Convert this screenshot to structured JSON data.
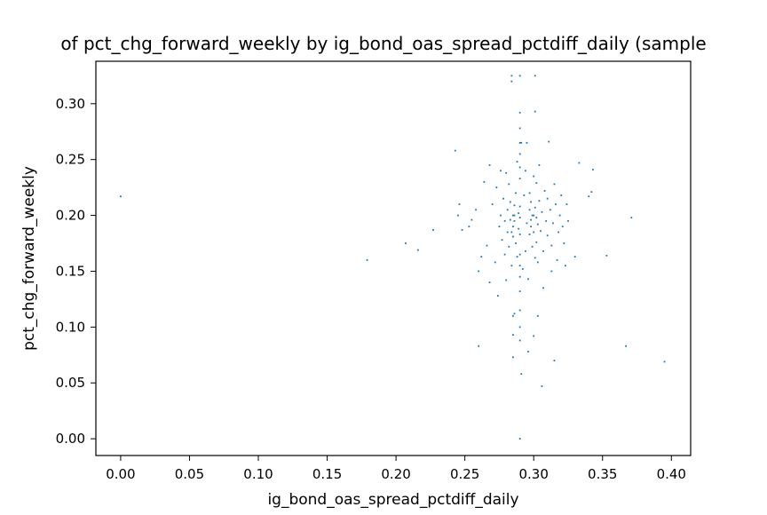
{
  "chart_data": {
    "type": "scatter",
    "title": "of pct_chg_forward_weekly by ig_bond_oas_spread_pctdiff_daily (sample",
    "xlabel": "ig_bond_oas_spread_pctdiff_daily",
    "ylabel": "pct_chg_forward_weekly",
    "xlim": [
      -0.018,
      0.414
    ],
    "ylim": [
      -0.015,
      0.338
    ],
    "xticks": [
      0.0,
      0.05,
      0.1,
      0.15,
      0.2,
      0.25,
      0.3,
      0.35,
      0.4
    ],
    "xtick_labels": [
      "0.00",
      "0.05",
      "0.10",
      "0.15",
      "0.20",
      "0.25",
      "0.30",
      "0.35",
      "0.40"
    ],
    "yticks": [
      0.0,
      0.05,
      0.1,
      0.15,
      0.2,
      0.25,
      0.3
    ],
    "ytick_labels": [
      "0.00",
      "0.05",
      "0.10",
      "0.15",
      "0.20",
      "0.25",
      "0.30"
    ],
    "grid": false,
    "series_color": "#1f77b4",
    "points": [
      [
        0.0,
        0.217
      ],
      [
        0.179,
        0.16
      ],
      [
        0.207,
        0.175
      ],
      [
        0.216,
        0.169
      ],
      [
        0.227,
        0.187
      ],
      [
        0.243,
        0.258
      ],
      [
        0.246,
        0.21
      ],
      [
        0.245,
        0.2
      ],
      [
        0.248,
        0.187
      ],
      [
        0.253,
        0.19
      ],
      [
        0.255,
        0.196
      ],
      [
        0.258,
        0.205
      ],
      [
        0.26,
        0.083
      ],
      [
        0.26,
        0.15
      ],
      [
        0.262,
        0.163
      ],
      [
        0.264,
        0.23
      ],
      [
        0.266,
        0.173
      ],
      [
        0.268,
        0.245
      ],
      [
        0.268,
        0.14
      ],
      [
        0.27,
        0.21
      ],
      [
        0.272,
        0.158
      ],
      [
        0.273,
        0.225
      ],
      [
        0.274,
        0.128
      ],
      [
        0.275,
        0.19
      ],
      [
        0.276,
        0.24
      ],
      [
        0.276,
        0.2
      ],
      [
        0.277,
        0.178
      ],
      [
        0.278,
        0.215
      ],
      [
        0.279,
        0.165
      ],
      [
        0.279,
        0.195
      ],
      [
        0.28,
        0.238
      ],
      [
        0.28,
        0.142
      ],
      [
        0.281,
        0.205
      ],
      [
        0.281,
        0.185
      ],
      [
        0.282,
        0.172
      ],
      [
        0.282,
        0.228
      ],
      [
        0.283,
        0.196
      ],
      [
        0.283,
        0.212
      ],
      [
        0.284,
        0.155
      ],
      [
        0.284,
        0.325
      ],
      [
        0.284,
        0.32
      ],
      [
        0.284,
        0.185
      ],
      [
        0.285,
        0.073
      ],
      [
        0.285,
        0.093
      ],
      [
        0.285,
        0.11
      ],
      [
        0.285,
        0.2
      ],
      [
        0.285,
        0.19
      ],
      [
        0.285,
        0.181
      ],
      [
        0.286,
        0.112
      ],
      [
        0.286,
        0.209
      ],
      [
        0.286,
        0.195
      ],
      [
        0.286,
        0.2
      ],
      [
        0.287,
        0.175
      ],
      [
        0.287,
        0.22
      ],
      [
        0.288,
        0.163
      ],
      [
        0.288,
        0.248
      ],
      [
        0.289,
        0.202
      ],
      [
        0.289,
        0.188
      ],
      [
        0.29,
        0.132
      ],
      [
        0.29,
        0.0
      ],
      [
        0.29,
        0.325
      ],
      [
        0.29,
        0.292
      ],
      [
        0.29,
        0.278
      ],
      [
        0.29,
        0.265
      ],
      [
        0.29,
        0.255
      ],
      [
        0.29,
        0.243
      ],
      [
        0.29,
        0.233
      ],
      [
        0.29,
        0.208
      ],
      [
        0.29,
        0.198
      ],
      [
        0.29,
        0.183
      ],
      [
        0.29,
        0.165
      ],
      [
        0.29,
        0.155
      ],
      [
        0.29,
        0.145
      ],
      [
        0.29,
        0.115
      ],
      [
        0.29,
        0.1
      ],
      [
        0.29,
        0.088
      ],
      [
        0.291,
        0.058
      ],
      [
        0.291,
        0.265
      ],
      [
        0.292,
        0.152
      ],
      [
        0.293,
        0.218
      ],
      [
        0.294,
        0.168
      ],
      [
        0.294,
        0.24
      ],
      [
        0.295,
        0.193
      ],
      [
        0.295,
        0.265
      ],
      [
        0.296,
        0.078
      ],
      [
        0.296,
        0.143
      ],
      [
        0.297,
        0.205
      ],
      [
        0.297,
        0.22
      ],
      [
        0.297,
        0.183
      ],
      [
        0.298,
        0.212
      ],
      [
        0.298,
        0.196
      ],
      [
        0.298,
        0.19
      ],
      [
        0.299,
        0.2
      ],
      [
        0.299,
        0.172
      ],
      [
        0.3,
        0.235
      ],
      [
        0.3,
        0.2
      ],
      [
        0.3,
        0.185
      ],
      [
        0.3,
        0.092
      ],
      [
        0.301,
        0.162
      ],
      [
        0.301,
        0.207
      ],
      [
        0.301,
        0.325
      ],
      [
        0.301,
        0.293
      ],
      [
        0.302,
        0.198
      ],
      [
        0.302,
        0.176
      ],
      [
        0.302,
        0.229
      ],
      [
        0.303,
        0.11
      ],
      [
        0.303,
        0.158
      ],
      [
        0.303,
        0.192
      ],
      [
        0.304,
        0.213
      ],
      [
        0.304,
        0.245
      ],
      [
        0.305,
        0.186
      ],
      [
        0.306,
        0.047
      ],
      [
        0.306,
        0.203
      ],
      [
        0.307,
        0.135
      ],
      [
        0.307,
        0.168
      ],
      [
        0.308,
        0.222
      ],
      [
        0.309,
        0.195
      ],
      [
        0.31,
        0.182
      ],
      [
        0.31,
        0.215
      ],
      [
        0.311,
        0.266
      ],
      [
        0.312,
        0.205
      ],
      [
        0.313,
        0.15
      ],
      [
        0.313,
        0.173
      ],
      [
        0.314,
        0.193
      ],
      [
        0.315,
        0.228
      ],
      [
        0.315,
        0.07
      ],
      [
        0.316,
        0.21
      ],
      [
        0.317,
        0.16
      ],
      [
        0.318,
        0.185
      ],
      [
        0.319,
        0.2
      ],
      [
        0.32,
        0.218
      ],
      [
        0.321,
        0.19
      ],
      [
        0.322,
        0.175
      ],
      [
        0.323,
        0.155
      ],
      [
        0.324,
        0.21
      ],
      [
        0.325,
        0.195
      ],
      [
        0.33,
        0.163
      ],
      [
        0.333,
        0.247
      ],
      [
        0.34,
        0.217
      ],
      [
        0.342,
        0.221
      ],
      [
        0.343,
        0.241
      ],
      [
        0.353,
        0.164
      ],
      [
        0.367,
        0.083
      ],
      [
        0.371,
        0.198
      ],
      [
        0.395,
        0.069
      ]
    ]
  }
}
